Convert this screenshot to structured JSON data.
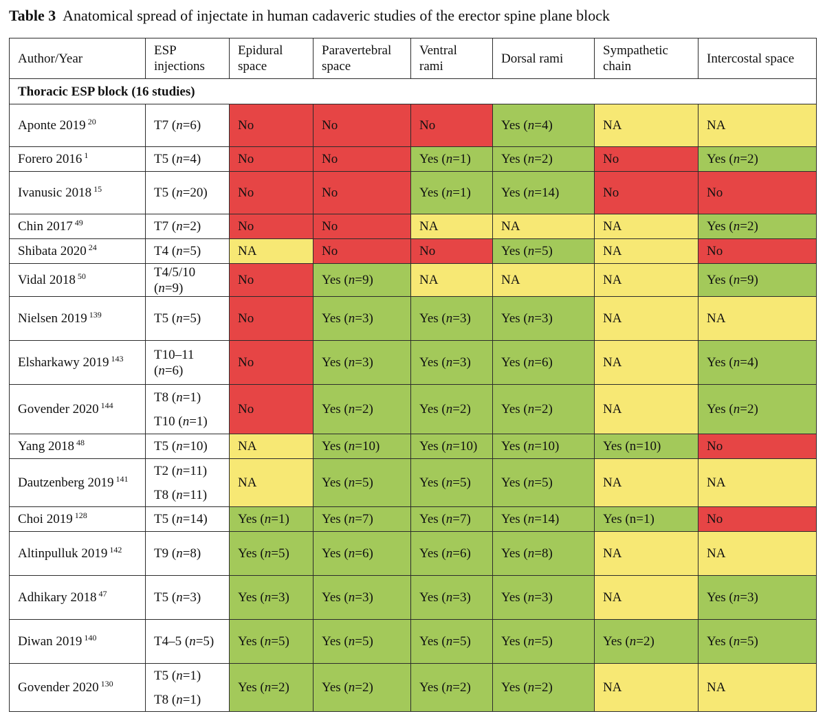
{
  "caption": {
    "label": "Table 3",
    "text": "Anatomical spread of injectate in human cadaveric studies of the erector spine plane block"
  },
  "headers": [
    {
      "line1": "Author/Year",
      "line2": ""
    },
    {
      "line1": "ESP",
      "line2": "injections"
    },
    {
      "line1": "Epidural",
      "line2": "space"
    },
    {
      "line1": "Paravertebral",
      "line2": "space"
    },
    {
      "line1": "Ventral",
      "line2": "rami"
    },
    {
      "line1": "Dorsal rami",
      "line2": ""
    },
    {
      "line1": "Sympathetic",
      "line2": "chain"
    },
    {
      "line1": "Intercostal space",
      "line2": ""
    }
  ],
  "section": "Thoracic ESP block (16 studies)",
  "colors": {
    "no": "#e64545",
    "na": "#f7e874",
    "yes": "#a3c95a"
  },
  "rows": [
    {
      "author": "Aponte 2019",
      "ref": "20",
      "inj": [
        "T7 (n=6)"
      ],
      "h": 62,
      "cells": [
        [
          "No",
          "r"
        ],
        [
          "No",
          "r"
        ],
        [
          "No",
          "r"
        ],
        [
          "Yes (n=4)",
          "g"
        ],
        [
          "NA",
          "y"
        ],
        [
          "NA",
          "y"
        ]
      ]
    },
    {
      "author": "Forero 2016",
      "ref": "1",
      "inj": [
        "T5 (n=4)"
      ],
      "h": 36,
      "cells": [
        [
          "No",
          "r"
        ],
        [
          "No",
          "r"
        ],
        [
          "Yes (n=1)",
          "g"
        ],
        [
          "Yes (n=2)",
          "g"
        ],
        [
          "No",
          "r"
        ],
        [
          "Yes (n=2)",
          "g"
        ]
      ]
    },
    {
      "author": "Ivanusic 2018",
      "ref": "15",
      "inj": [
        "T5 (n=20)"
      ],
      "h": 62,
      "cells": [
        [
          "No",
          "r"
        ],
        [
          "No",
          "r"
        ],
        [
          "Yes (n=1)",
          "g"
        ],
        [
          "Yes (n=14)",
          "g"
        ],
        [
          "No",
          "r"
        ],
        [
          "No",
          "r"
        ]
      ]
    },
    {
      "author": "Chin 2017",
      "ref": "49",
      "inj": [
        "T7 (n=2)"
      ],
      "h": 36,
      "cells": [
        [
          "No",
          "r"
        ],
        [
          "No",
          "r"
        ],
        [
          "NA",
          "y"
        ],
        [
          "NA",
          "y"
        ],
        [
          "NA",
          "y"
        ],
        [
          "Yes (n=2)",
          "g"
        ]
      ]
    },
    {
      "author": "Shibata 2020",
      "ref": "24",
      "inj": [
        "T4 (n=5)"
      ],
      "h": 36,
      "cells": [
        [
          "NA",
          "y"
        ],
        [
          "No",
          "r"
        ],
        [
          "No",
          "r"
        ],
        [
          "Yes (n=5)",
          "g"
        ],
        [
          "NA",
          "y"
        ],
        [
          "No",
          "r"
        ]
      ]
    },
    {
      "author": "Vidal 2018",
      "ref": "50",
      "inj": [
        "T4/5/10",
        "(n=9)"
      ],
      "h": 48,
      "injtight": true,
      "cells": [
        [
          "No",
          "r"
        ],
        [
          "Yes (n=9)",
          "g"
        ],
        [
          "NA",
          "y"
        ],
        [
          "NA",
          "y"
        ],
        [
          "NA",
          "y"
        ],
        [
          "Yes (n=9)",
          "g"
        ]
      ]
    },
    {
      "author": "Nielsen 2019",
      "ref": "139",
      "inj": [
        "T5 (n=5)"
      ],
      "h": 64,
      "cells": [
        [
          "No",
          "r"
        ],
        [
          "Yes (n=3)",
          "g"
        ],
        [
          "Yes (n=3)",
          "g"
        ],
        [
          "Yes (n=3)",
          "g"
        ],
        [
          "NA",
          "y"
        ],
        [
          "NA",
          "y"
        ]
      ]
    },
    {
      "author": "Elsharkawy 2019",
      "ref": "143",
      "inj": [
        "T10–11",
        "(n=6)"
      ],
      "h": 64,
      "injtight": true,
      "cells": [
        [
          "No",
          "r"
        ],
        [
          "Yes (n=3)",
          "g"
        ],
        [
          "Yes (n=3)",
          "g"
        ],
        [
          "Yes (n=6)",
          "g"
        ],
        [
          "NA",
          "y"
        ],
        [
          "Yes (n=4)",
          "g"
        ]
      ]
    },
    {
      "author": "Govender 2020",
      "ref": "144",
      "inj": [
        "T8 (n=1)",
        "T10 (n=1)"
      ],
      "h": 72,
      "cells": [
        [
          "No",
          "r"
        ],
        [
          "Yes (n=2)",
          "g"
        ],
        [
          "Yes (n=2)",
          "g"
        ],
        [
          "Yes (n=2)",
          "g"
        ],
        [
          "NA",
          "y"
        ],
        [
          "Yes (n=2)",
          "g"
        ]
      ]
    },
    {
      "author": "Yang 2018",
      "ref": "48",
      "inj": [
        "T5 (n=10)"
      ],
      "h": 36,
      "cells": [
        [
          "NA",
          "y"
        ],
        [
          "Yes (n=10)",
          "g"
        ],
        [
          "Yes (n=10)",
          "g"
        ],
        [
          "Yes (n=10)",
          "g"
        ],
        [
          "Yes (n=10)",
          "g"
        ],
        [
          "No",
          "r"
        ]
      ]
    },
    {
      "author": "Dautzenberg 2019",
      "ref": "141",
      "inj": [
        "T2 (n=11)",
        "T8 (n=11)"
      ],
      "h": 70,
      "cells": [
        [
          "NA",
          "y"
        ],
        [
          "Yes (n=5)",
          "g"
        ],
        [
          "Yes (n=5)",
          "g"
        ],
        [
          "Yes (n=5)",
          "g"
        ],
        [
          "NA",
          "y"
        ],
        [
          "NA",
          "y"
        ]
      ]
    },
    {
      "author": "Choi 2019",
      "ref": "128",
      "inj": [
        "T5 (n=14)"
      ],
      "h": 36,
      "cells": [
        [
          "Yes (n=1)",
          "g"
        ],
        [
          "Yes (n=7)",
          "g"
        ],
        [
          "Yes (n=7)",
          "g"
        ],
        [
          "Yes (n=14)",
          "g"
        ],
        [
          "Yes (n=1)",
          "g"
        ],
        [
          "No",
          "r"
        ]
      ]
    },
    {
      "author": "Altinpulluk 2019",
      "ref": "142",
      "inj": [
        "T9 (n=8)"
      ],
      "h": 64,
      "cells": [
        [
          "Yes (n=5)",
          "g"
        ],
        [
          "Yes (n=6)",
          "g"
        ],
        [
          "Yes (n=6)",
          "g"
        ],
        [
          "Yes (n=8)",
          "g"
        ],
        [
          "NA",
          "y"
        ],
        [
          "NA",
          "y"
        ]
      ]
    },
    {
      "author": "Adhikary 2018",
      "ref": "47",
      "inj": [
        "T5 (n=3)"
      ],
      "h": 64,
      "cells": [
        [
          "Yes (n=3)",
          "g"
        ],
        [
          "Yes (n=3)",
          "g"
        ],
        [
          "Yes (n=3)",
          "g"
        ],
        [
          "Yes (n=3)",
          "g"
        ],
        [
          "NA",
          "y"
        ],
        [
          "Yes (n=3)",
          "g"
        ]
      ]
    },
    {
      "author": "Diwan 2019",
      "ref": "140",
      "inj": [
        "T4–5 (n=5)"
      ],
      "h": 64,
      "cells": [
        [
          "Yes (n=5)",
          "g"
        ],
        [
          "Yes (n=5)",
          "g"
        ],
        [
          "Yes (n=5)",
          "g"
        ],
        [
          "Yes (n=5)",
          "g"
        ],
        [
          "Yes (n=2)",
          "g"
        ],
        [
          "Yes (n=5)",
          "g"
        ]
      ]
    },
    {
      "author": "Govender 2020",
      "ref": "130",
      "inj": [
        "T5 (n=1)",
        "T8 (n=1)"
      ],
      "h": 70,
      "cells": [
        [
          "Yes (n=2)",
          "g"
        ],
        [
          "Yes (n=2)",
          "g"
        ],
        [
          "Yes (n=2)",
          "g"
        ],
        [
          "Yes (n=2)",
          "g"
        ],
        [
          "NA",
          "y"
        ],
        [
          "NA",
          "y"
        ]
      ]
    }
  ]
}
